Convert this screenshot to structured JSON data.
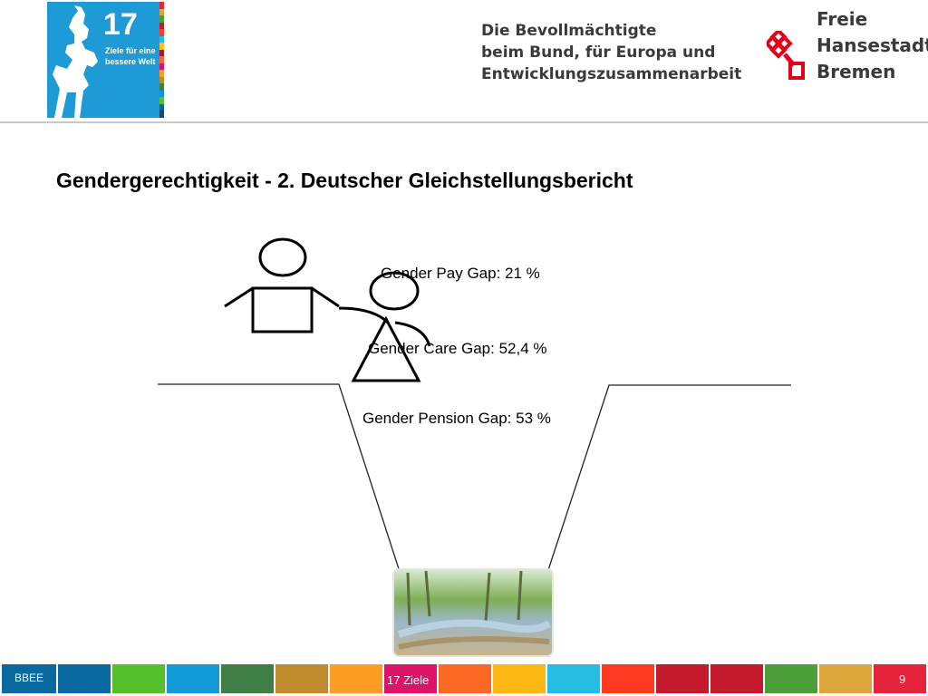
{
  "header": {
    "sdg_logo": {
      "number": "17",
      "subtitle_lines": [
        "Ziele für eine",
        "bessere Welt"
      ],
      "background": "#1e9ad6"
    },
    "bevollmaechtigte_lines": [
      "Die Bevollmächtigte",
      "beim Bund, für Europa und",
      "Entwicklungszusammenarbeit"
    ],
    "bremen_lines": [
      "Freie",
      "Hansestadt",
      "Bremen"
    ],
    "bremen_key_color": "#e2001a"
  },
  "slide": {
    "title": "Gendergerechtigkeit - 2. Deutscher Gleichstellungsbericht",
    "gaps": {
      "pay": "Gender Pay Gap: 21 %",
      "care": "Gender Care Gap: 52,4 %",
      "pension": "Gender Pension Gap: 53 %"
    },
    "illustration_icons": [
      "man-figure-icon",
      "woman-figure-icon",
      "gap-chasm-icon",
      "forest-stream-photo"
    ]
  },
  "footer": {
    "left_label": "BBEE",
    "center_label": "17 Ziele",
    "page_number": "9",
    "sdg_colors": [
      "#0a6aa0",
      "#0a6aa0",
      "#56c02b",
      "#139bd9",
      "#3f7e44",
      "#c08b2c",
      "#fd9d24",
      "#dd1367",
      "#fd6925",
      "#fdb713",
      "#26bde2",
      "#ff3a21",
      "#c5192d",
      "#4c9f38",
      "#dda63a",
      "#e5243b"
    ]
  }
}
